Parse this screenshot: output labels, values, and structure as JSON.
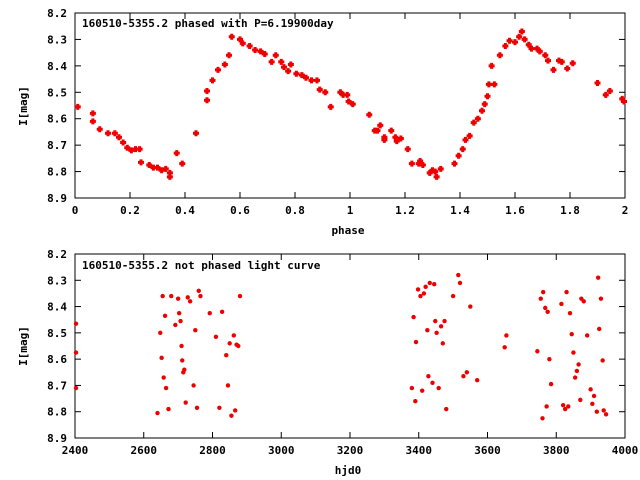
{
  "colors": {
    "points": "#ee0000",
    "axes": "#000000",
    "background": "#ffffff"
  },
  "chart_data": [
    {
      "type": "scatter",
      "title": "160510-5355.2 phased with P=6.19900day",
      "xlabel": "phase",
      "ylabel": "I[mag]",
      "xlim": [
        0,
        2
      ],
      "ylim": [
        8.2,
        8.9
      ],
      "y_inverted": true,
      "grid": false,
      "marker": "filled-box",
      "xticks": [
        "0",
        "0.2",
        "0.4",
        "0.6",
        "0.8",
        "1",
        "1.2",
        "1.4",
        "1.6",
        "1.8",
        "2"
      ],
      "yticks": [
        "8.2",
        "8.3",
        "8.4",
        "8.5",
        "8.6",
        "8.7",
        "8.8",
        "8.9"
      ],
      "points": [
        [
          0.01,
          8.555
        ],
        [
          0.065,
          8.58
        ],
        [
          0.065,
          8.61
        ],
        [
          0.09,
          8.64
        ],
        [
          0.12,
          8.655
        ],
        [
          0.145,
          8.655
        ],
        [
          0.16,
          8.67
        ],
        [
          0.175,
          8.69
        ],
        [
          0.19,
          8.71
        ],
        [
          0.205,
          8.72
        ],
        [
          0.22,
          8.715
        ],
        [
          0.235,
          8.715
        ],
        [
          0.24,
          8.765
        ],
        [
          0.27,
          8.775
        ],
        [
          0.285,
          8.785
        ],
        [
          0.3,
          8.785
        ],
        [
          0.315,
          8.795
        ],
        [
          0.33,
          8.79
        ],
        [
          0.345,
          8.805
        ],
        [
          0.345,
          8.82
        ],
        [
          0.37,
          8.73
        ],
        [
          0.39,
          8.77
        ],
        [
          0.44,
          8.655
        ],
        [
          0.48,
          8.53
        ],
        [
          0.48,
          8.495
        ],
        [
          0.5,
          8.455
        ],
        [
          0.52,
          8.415
        ],
        [
          0.545,
          8.395
        ],
        [
          0.56,
          8.36
        ],
        [
          0.57,
          8.29
        ],
        [
          0.6,
          8.3
        ],
        [
          0.61,
          8.315
        ],
        [
          0.635,
          8.325
        ],
        [
          0.655,
          8.34
        ],
        [
          0.675,
          8.345
        ],
        [
          0.69,
          8.355
        ],
        [
          0.715,
          8.385
        ],
        [
          0.73,
          8.36
        ],
        [
          0.75,
          8.385
        ],
        [
          0.76,
          8.405
        ],
        [
          0.775,
          8.42
        ],
        [
          0.785,
          8.395
        ],
        [
          0.805,
          8.43
        ],
        [
          0.825,
          8.435
        ],
        [
          0.84,
          8.445
        ],
        [
          0.86,
          8.455
        ],
        [
          0.88,
          8.455
        ],
        [
          0.89,
          8.49
        ],
        [
          0.91,
          8.5
        ],
        [
          0.93,
          8.555
        ],
        [
          0.965,
          8.5
        ],
        [
          0.975,
          8.51
        ],
        [
          0.99,
          8.51
        ],
        [
          0.995,
          8.535
        ],
        [
          1.01,
          8.545
        ],
        [
          1.07,
          8.585
        ],
        [
          1.09,
          8.645
        ],
        [
          1.1,
          8.645
        ],
        [
          1.11,
          8.625
        ],
        [
          1.125,
          8.67
        ],
        [
          1.125,
          8.68
        ],
        [
          1.15,
          8.645
        ],
        [
          1.165,
          8.67
        ],
        [
          1.17,
          8.685
        ],
        [
          1.185,
          8.675
        ],
        [
          1.21,
          8.715
        ],
        [
          1.225,
          8.77
        ],
        [
          1.25,
          8.77
        ],
        [
          1.255,
          8.76
        ],
        [
          1.265,
          8.775
        ],
        [
          1.29,
          8.805
        ],
        [
          1.3,
          8.795
        ],
        [
          1.31,
          8.8
        ],
        [
          1.315,
          8.82
        ],
        [
          1.33,
          8.79
        ],
        [
          1.38,
          8.77
        ],
        [
          1.395,
          8.74
        ],
        [
          1.41,
          8.715
        ],
        [
          1.42,
          8.68
        ],
        [
          1.435,
          8.665
        ],
        [
          1.45,
          8.615
        ],
        [
          1.465,
          8.6
        ],
        [
          1.48,
          8.57
        ],
        [
          1.49,
          8.545
        ],
        [
          1.5,
          8.515
        ],
        [
          1.505,
          8.47
        ],
        [
          1.515,
          8.4
        ],
        [
          1.525,
          8.47
        ],
        [
          1.545,
          8.36
        ],
        [
          1.565,
          8.325
        ],
        [
          1.58,
          8.305
        ],
        [
          1.6,
          8.31
        ],
        [
          1.615,
          8.29
        ],
        [
          1.625,
          8.27
        ],
        [
          1.635,
          8.3
        ],
        [
          1.65,
          8.32
        ],
        [
          1.66,
          8.335
        ],
        [
          1.68,
          8.335
        ],
        [
          1.69,
          8.345
        ],
        [
          1.71,
          8.36
        ],
        [
          1.72,
          8.38
        ],
        [
          1.74,
          8.415
        ],
        [
          1.76,
          8.38
        ],
        [
          1.77,
          8.385
        ],
        [
          1.79,
          8.41
        ],
        [
          1.81,
          8.39
        ],
        [
          1.9,
          8.465
        ],
        [
          1.93,
          8.51
        ],
        [
          1.945,
          8.495
        ],
        [
          1.99,
          8.525
        ],
        [
          2.0,
          8.535
        ]
      ]
    },
    {
      "type": "scatter",
      "title": "160510-5355.2 not phased light curve",
      "xlabel": "hjd0",
      "ylabel": "I[mag]",
      "xlim": [
        2400,
        4000
      ],
      "ylim": [
        8.2,
        8.9
      ],
      "y_inverted": true,
      "grid": false,
      "marker": "dot",
      "xticks": [
        "2400",
        "2600",
        "2800",
        "3000",
        "3200",
        "3400",
        "3600",
        "3800",
        "4000"
      ],
      "yticks": [
        "8.2",
        "8.3",
        "8.4",
        "8.5",
        "8.6",
        "8.7",
        "8.8",
        "8.9"
      ],
      "points": [
        [
          2400,
          8.465
        ],
        [
          2400,
          8.575
        ],
        [
          2400,
          8.71
        ],
        [
          2640,
          8.805
        ],
        [
          2648,
          8.5
        ],
        [
          2652,
          8.595
        ],
        [
          2655,
          8.36
        ],
        [
          2658,
          8.67
        ],
        [
          2662,
          8.435
        ],
        [
          2665,
          8.71
        ],
        [
          2672,
          8.79
        ],
        [
          2680,
          8.36
        ],
        [
          2692,
          8.47
        ],
        [
          2700,
          8.37
        ],
        [
          2703,
          8.425
        ],
        [
          2707,
          8.455
        ],
        [
          2710,
          8.55
        ],
        [
          2712,
          8.605
        ],
        [
          2715,
          8.65
        ],
        [
          2718,
          8.64
        ],
        [
          2722,
          8.765
        ],
        [
          2728,
          8.365
        ],
        [
          2735,
          8.38
        ],
        [
          2745,
          8.7
        ],
        [
          2750,
          8.49
        ],
        [
          2755,
          8.785
        ],
        [
          2760,
          8.34
        ],
        [
          2765,
          8.36
        ],
        [
          2792,
          8.425
        ],
        [
          2810,
          8.515
        ],
        [
          2820,
          8.785
        ],
        [
          2828,
          8.42
        ],
        [
          2840,
          8.585
        ],
        [
          2845,
          8.7
        ],
        [
          2850,
          8.54
        ],
        [
          2855,
          8.815
        ],
        [
          2862,
          8.51
        ],
        [
          2866,
          8.795
        ],
        [
          2870,
          8.545
        ],
        [
          2875,
          8.55
        ],
        [
          2880,
          8.36
        ],
        [
          3380,
          8.71
        ],
        [
          3385,
          8.44
        ],
        [
          3390,
          8.76
        ],
        [
          3392,
          8.535
        ],
        [
          3398,
          8.335
        ],
        [
          3405,
          8.36
        ],
        [
          3410,
          8.72
        ],
        [
          3415,
          8.35
        ],
        [
          3420,
          8.325
        ],
        [
          3425,
          8.49
        ],
        [
          3428,
          8.665
        ],
        [
          3432,
          8.31
        ],
        [
          3440,
          8.69
        ],
        [
          3445,
          8.315
        ],
        [
          3448,
          8.455
        ],
        [
          3452,
          8.5
        ],
        [
          3458,
          8.71
        ],
        [
          3465,
          8.475
        ],
        [
          3470,
          8.54
        ],
        [
          3475,
          8.455
        ],
        [
          3480,
          8.79
        ],
        [
          3500,
          8.36
        ],
        [
          3515,
          8.28
        ],
        [
          3520,
          8.31
        ],
        [
          3530,
          8.665
        ],
        [
          3540,
          8.65
        ],
        [
          3550,
          8.4
        ],
        [
          3570,
          8.68
        ],
        [
          3650,
          8.555
        ],
        [
          3655,
          8.51
        ],
        [
          3745,
          8.57
        ],
        [
          3755,
          8.37
        ],
        [
          3760,
          8.825
        ],
        [
          3762,
          8.345
        ],
        [
          3768,
          8.405
        ],
        [
          3772,
          8.78
        ],
        [
          3775,
          8.42
        ],
        [
          3780,
          8.6
        ],
        [
          3785,
          8.695
        ],
        [
          3815,
          8.39
        ],
        [
          3820,
          8.775
        ],
        [
          3826,
          8.79
        ],
        [
          3830,
          8.345
        ],
        [
          3835,
          8.78
        ],
        [
          3840,
          8.425
        ],
        [
          3845,
          8.505
        ],
        [
          3850,
          8.575
        ],
        [
          3855,
          8.67
        ],
        [
          3860,
          8.645
        ],
        [
          3865,
          8.62
        ],
        [
          3870,
          8.755
        ],
        [
          3873,
          8.37
        ],
        [
          3880,
          8.38
        ],
        [
          3890,
          8.51
        ],
        [
          3900,
          8.715
        ],
        [
          3905,
          8.77
        ],
        [
          3910,
          8.74
        ],
        [
          3918,
          8.8
        ],
        [
          3922,
          8.29
        ],
        [
          3925,
          8.485
        ],
        [
          3930,
          8.37
        ],
        [
          3935,
          8.605
        ],
        [
          3938,
          8.795
        ],
        [
          3945,
          8.81
        ]
      ]
    }
  ]
}
